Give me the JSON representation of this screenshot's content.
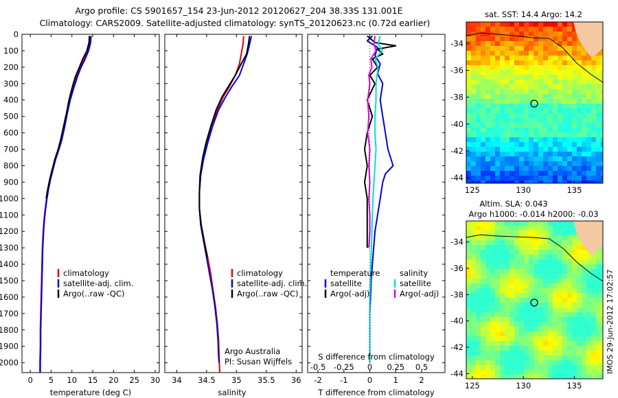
{
  "header": {
    "line1": "Argo profile: CS 5901657_154 23-Jun-2012 20120627_204 38.33S 131.001E",
    "line2": "Climatology: CARS2009. Satellite-adjusted climatology: synTS_20120623.nc (0.72d earlier)"
  },
  "colors": {
    "climatology": "#e00000",
    "satellite": "#0000e0",
    "argo": "#000000",
    "sat_salinity": "#00e0e0",
    "argo_salinity": "#e000e0",
    "land": "#f4c8a0"
  },
  "depth_axis": {
    "ylim": [
      0,
      2060
    ],
    "ticks": [
      "0",
      "100",
      "200",
      "300",
      "400",
      "500",
      "600",
      "700",
      "800",
      "900",
      "1000",
      "1100",
      "1200",
      "1300",
      "1400",
      "1500",
      "1600",
      "1700",
      "1800",
      "1900",
      "2000"
    ]
  },
  "chart_data": [
    {
      "type": "line",
      "id": "temperature",
      "xlabel": "temperature (deg C)",
      "xlim": [
        -2,
        31
      ],
      "xticks": [
        "0",
        "5",
        "10",
        "15",
        "20",
        "25",
        "30"
      ],
      "legend": [
        "climatology",
        "satellite-adj. clim.",
        "Argo(..raw -QC)"
      ],
      "series": [
        {
          "name": "climatology",
          "color_key": "climatology",
          "points": [
            [
              14.3,
              10
            ],
            [
              14.2,
              50
            ],
            [
              13.7,
              100
            ],
            [
              13.0,
              150
            ],
            [
              12.0,
              200
            ],
            [
              11.0,
              260
            ],
            [
              10.2,
              330
            ],
            [
              9.5,
              400
            ],
            [
              8.8,
              480
            ],
            [
              8.2,
              560
            ],
            [
              7.5,
              640
            ],
            [
              6.8,
              700
            ],
            [
              6.0,
              760
            ],
            [
              5.3,
              830
            ],
            [
              4.8,
              880
            ],
            [
              4.3,
              940
            ],
            [
              3.9,
              1000
            ],
            [
              3.6,
              1060
            ],
            [
              3.3,
              1130
            ],
            [
              3.1,
              1200
            ],
            [
              2.9,
              1300
            ],
            [
              2.8,
              1400
            ],
            [
              2.7,
              1500
            ],
            [
              2.6,
              1600
            ],
            [
              2.5,
              1700
            ],
            [
              2.4,
              1800
            ],
            [
              2.4,
              1900
            ],
            [
              2.3,
              2000
            ],
            [
              2.3,
              2060
            ]
          ]
        },
        {
          "name": "satellite-adj. clim.",
          "color_key": "satellite",
          "points": [
            [
              14.6,
              10
            ],
            [
              14.5,
              50
            ],
            [
              14.0,
              100
            ],
            [
              13.2,
              150
            ],
            [
              12.2,
              200
            ],
            [
              11.3,
              260
            ],
            [
              10.4,
              330
            ],
            [
              9.6,
              400
            ],
            [
              8.9,
              480
            ],
            [
              8.3,
              560
            ],
            [
              7.6,
              640
            ],
            [
              6.9,
              700
            ],
            [
              6.1,
              760
            ],
            [
              5.4,
              830
            ],
            [
              4.9,
              880
            ],
            [
              4.4,
              940
            ],
            [
              4.0,
              1000
            ],
            [
              3.7,
              1060
            ],
            [
              3.4,
              1130
            ],
            [
              3.2,
              1200
            ],
            [
              3.0,
              1300
            ],
            [
              2.9,
              1400
            ],
            [
              2.8,
              1500
            ],
            [
              2.7,
              1600
            ],
            [
              2.6,
              1700
            ],
            [
              2.5,
              1800
            ],
            [
              2.5,
              1900
            ],
            [
              2.4,
              2000
            ],
            [
              2.4,
              2060
            ]
          ]
        },
        {
          "name": "Argo(..raw -QC)",
          "color_key": "argo",
          "points": [
            [
              14.2,
              10
            ],
            [
              14.1,
              50
            ],
            [
              13.6,
              100
            ],
            [
              12.6,
              150
            ],
            [
              11.8,
              200
            ],
            [
              10.8,
              260
            ],
            [
              10.0,
              330
            ],
            [
              9.3,
              400
            ],
            [
              8.7,
              480
            ],
            [
              8.0,
              560
            ],
            [
              7.3,
              640
            ],
            [
              6.7,
              700
            ],
            [
              5.9,
              760
            ],
            [
              5.2,
              830
            ],
            [
              4.7,
              880
            ],
            [
              4.2,
              940
            ],
            [
              3.8,
              1000
            ]
          ]
        }
      ]
    },
    {
      "type": "line",
      "id": "salinity",
      "xlabel": "salinity",
      "xlim": [
        33.8,
        36.1
      ],
      "xticks": [
        "34",
        "34.5",
        "35",
        "35.5",
        "36"
      ],
      "legend": [
        "climatology",
        "satellite-adj. clim.",
        "Argo(..raw -QC)"
      ],
      "annotation": [
        "Argo Australia",
        "PI: Susan Wijffels"
      ],
      "series": [
        {
          "name": "climatology",
          "color_key": "climatology",
          "points": [
            [
              35.12,
              10
            ],
            [
              35.11,
              60
            ],
            [
              35.08,
              120
            ],
            [
              35.05,
              180
            ],
            [
              34.98,
              250
            ],
            [
              34.88,
              320
            ],
            [
              34.78,
              380
            ],
            [
              34.68,
              460
            ],
            [
              34.58,
              560
            ],
            [
              34.5,
              660
            ],
            [
              34.44,
              760
            ],
            [
              34.4,
              860
            ],
            [
              34.38,
              960
            ],
            [
              34.38,
              1060
            ],
            [
              34.41,
              1160
            ],
            [
              34.46,
              1260
            ],
            [
              34.52,
              1360
            ],
            [
              34.57,
              1460
            ],
            [
              34.61,
              1560
            ],
            [
              34.65,
              1660
            ],
            [
              34.68,
              1760
            ],
            [
              34.7,
              1860
            ],
            [
              34.71,
              1960
            ],
            [
              34.72,
              2060
            ]
          ]
        },
        {
          "name": "satellite-adj. clim.",
          "color_key": "satellite",
          "points": [
            [
              35.25,
              10
            ],
            [
              35.22,
              60
            ],
            [
              35.18,
              120
            ],
            [
              35.12,
              180
            ],
            [
              35.05,
              250
            ],
            [
              34.92,
              320
            ],
            [
              34.82,
              380
            ],
            [
              34.7,
              460
            ],
            [
              34.6,
              560
            ],
            [
              34.52,
              660
            ],
            [
              34.45,
              760
            ],
            [
              34.4,
              860
            ],
            [
              34.38,
              960
            ],
            [
              34.38,
              1060
            ],
            [
              34.4,
              1160
            ],
            [
              34.45,
              1260
            ],
            [
              34.5,
              1360
            ],
            [
              34.55,
              1460
            ],
            [
              34.6,
              1560
            ],
            [
              34.64,
              1660
            ],
            [
              34.67,
              1760
            ],
            [
              34.69,
              1860
            ],
            [
              34.7,
              1960
            ],
            [
              34.71,
              2000
            ]
          ]
        },
        {
          "name": "Argo(..raw -QC)",
          "color_key": "argo",
          "points": [
            [
              35.22,
              10
            ],
            [
              35.2,
              60
            ],
            [
              35.17,
              120
            ],
            [
              35.08,
              180
            ],
            [
              34.98,
              250
            ],
            [
              34.86,
              320
            ],
            [
              34.76,
              380
            ],
            [
              34.66,
              460
            ],
            [
              34.57,
              560
            ],
            [
              34.49,
              660
            ],
            [
              34.43,
              760
            ],
            [
              34.39,
              860
            ],
            [
              34.38,
              960
            ],
            [
              34.38,
              1060
            ],
            [
              34.41,
              1160
            ],
            [
              34.46,
              1260
            ],
            [
              34.51,
              1360
            ]
          ]
        }
      ]
    },
    {
      "type": "line",
      "id": "difference",
      "xlabel": "T difference from climatology",
      "xlabel_top": "S difference from climatology",
      "xlim": [
        -2.4,
        2.9
      ],
      "xticks": [
        "-2",
        "-1",
        "0",
        "1",
        "2"
      ],
      "sticks": [
        "-0.5",
        "-0.25",
        "0",
        "0.25",
        "0.5"
      ],
      "s_scale": 4,
      "legend_temperature": [
        "temperature",
        "satellite",
        "Argo(-adj)"
      ],
      "legend_salinity": [
        "salinity",
        "satellite",
        "Argo(-adj)"
      ],
      "series": [
        {
          "name": "T satellite",
          "color_key": "satellite",
          "points": [
            [
              0.1,
              10
            ],
            [
              -0.1,
              40
            ],
            [
              0.3,
              80
            ],
            [
              0.2,
              130
            ],
            [
              0.4,
              180
            ],
            [
              0.3,
              240
            ],
            [
              0.5,
              300
            ],
            [
              0.4,
              400
            ],
            [
              0.5,
              500
            ],
            [
              0.6,
              600
            ],
            [
              0.7,
              700
            ],
            [
              0.9,
              800
            ],
            [
              0.6,
              850
            ],
            [
              0.5,
              900
            ],
            [
              0.4,
              1000
            ],
            [
              0.3,
              1100
            ],
            [
              0.2,
              1200
            ],
            [
              0.15,
              1300
            ],
            [
              0.1,
              1400
            ],
            [
              0.05,
              1500
            ],
            [
              0.03,
              1600
            ],
            [
              0.0,
              1700
            ],
            [
              0.0,
              1800
            ],
            [
              0.0,
              1900
            ],
            [
              0.0,
              2000
            ]
          ]
        },
        {
          "name": "T Argo",
          "color_key": "argo",
          "points": [
            [
              -0.1,
              10
            ],
            [
              0.2,
              50
            ],
            [
              1.0,
              70
            ],
            [
              0.3,
              90
            ],
            [
              0.5,
              120
            ],
            [
              0.1,
              150
            ],
            [
              0.3,
              200
            ],
            [
              0.0,
              250
            ],
            [
              0.2,
              300
            ],
            [
              -0.1,
              400
            ],
            [
              0.1,
              500
            ],
            [
              -0.1,
              600
            ],
            [
              -0.2,
              700
            ],
            [
              -0.1,
              800
            ],
            [
              -0.2,
              900
            ],
            [
              -0.1,
              1000
            ],
            [
              -0.1,
              1100
            ],
            [
              -0.1,
              1200
            ],
            [
              -0.1,
              1300
            ]
          ]
        },
        {
          "name": "S satellite",
          "color_key": "sat_salinity",
          "points": [
            [
              0.1,
              10
            ],
            [
              0.08,
              60
            ],
            [
              0.12,
              100
            ],
            [
              0.05,
              150
            ],
            [
              0.08,
              200
            ],
            [
              0.06,
              300
            ],
            [
              0.06,
              400
            ],
            [
              0.05,
              500
            ],
            [
              0.05,
              600
            ],
            [
              0.06,
              700
            ],
            [
              0.05,
              800
            ],
            [
              0.04,
              900
            ],
            [
              0.03,
              1000
            ],
            [
              0.02,
              1200
            ],
            [
              0.01,
              1400
            ],
            [
              0.0,
              1600
            ],
            [
              0.0,
              1800
            ],
            [
              0.0,
              2000
            ]
          ]
        },
        {
          "name": "S Argo",
          "color_key": "argo_salinity",
          "points": [
            [
              0.05,
              10
            ],
            [
              0.04,
              60
            ],
            [
              0.06,
              100
            ],
            [
              0.01,
              150
            ],
            [
              0.02,
              200
            ],
            [
              -0.01,
              250
            ],
            [
              0.0,
              300
            ],
            [
              -0.02,
              400
            ],
            [
              -0.01,
              500
            ],
            [
              -0.02,
              600
            ],
            [
              0.0,
              700
            ],
            [
              -0.01,
              800
            ],
            [
              0.0,
              900
            ],
            [
              -0.01,
              1000
            ],
            [
              0.0,
              1100
            ],
            [
              0.0,
              1200
            ],
            [
              -0.01,
              1300
            ]
          ]
        }
      ]
    }
  ],
  "maps": {
    "sst": {
      "title": "sat. SST: 14.4 Argo: 14.2",
      "yticks": [
        "-34",
        "-36",
        "-38",
        "-40",
        "-42",
        "-44"
      ],
      "xticks": [
        "125",
        "130",
        "135"
      ],
      "lat_range": [
        -44.4,
        -32.4
      ],
      "lon_range": [
        124.4,
        137.8
      ],
      "float_pos": [
        131.0,
        -38.33
      ]
    },
    "sla": {
      "title_line1": "Altim. SLA: 0.043",
      "title_line2": "Argo h1000: -0.014 h2000: -0.03",
      "yticks": [
        "-34",
        "-36",
        "-38",
        "-40",
        "-42",
        "-44"
      ],
      "xticks": [
        "125",
        "130",
        "135"
      ],
      "lat_range": [
        -44.4,
        -32.4
      ],
      "lon_range": [
        124.4,
        137.8
      ],
      "float_pos": [
        131.0,
        -38.33
      ]
    },
    "credit": "IMOS 29-Jun-2012 17:02:57"
  }
}
